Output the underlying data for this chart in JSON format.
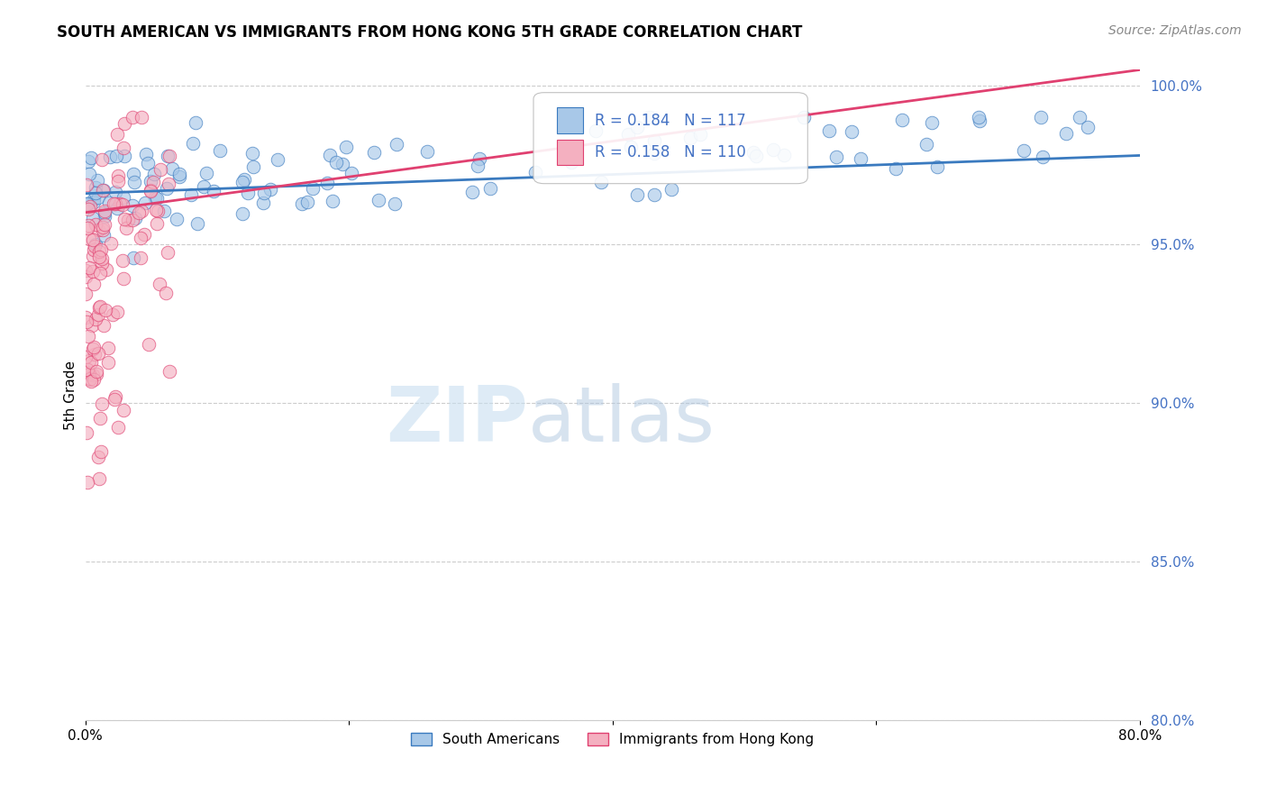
{
  "title": "SOUTH AMERICAN VS IMMIGRANTS FROM HONG KONG 5TH GRADE CORRELATION CHART",
  "source": "Source: ZipAtlas.com",
  "ylabel": "5th Grade",
  "xmin": 0.0,
  "xmax": 0.8,
  "ymin": 0.8,
  "ymax": 1.005,
  "blue_R": 0.184,
  "blue_N": 117,
  "pink_R": 0.158,
  "pink_N": 110,
  "blue_color": "#a8c8e8",
  "pink_color": "#f4b0c0",
  "blue_line_color": "#3a7abf",
  "pink_line_color": "#e04070",
  "legend_label_blue": "South Americans",
  "legend_label_pink": "Immigrants from Hong Kong",
  "watermark_zip": "ZIP",
  "watermark_atlas": "atlas",
  "blue_scatter_x": [
    0.002,
    0.003,
    0.004,
    0.005,
    0.006,
    0.007,
    0.008,
    0.009,
    0.01,
    0.011,
    0.012,
    0.013,
    0.014,
    0.015,
    0.016,
    0.017,
    0.018,
    0.019,
    0.02,
    0.021,
    0.022,
    0.023,
    0.024,
    0.025,
    0.026,
    0.027,
    0.028,
    0.029,
    0.03,
    0.032,
    0.034,
    0.036,
    0.038,
    0.04,
    0.042,
    0.044,
    0.046,
    0.048,
    0.05,
    0.055,
    0.06,
    0.065,
    0.07,
    0.075,
    0.08,
    0.09,
    0.1,
    0.11,
    0.12,
    0.13,
    0.14,
    0.15,
    0.16,
    0.17,
    0.18,
    0.19,
    0.2,
    0.21,
    0.22,
    0.23,
    0.24,
    0.25,
    0.26,
    0.27,
    0.28,
    0.29,
    0.3,
    0.31,
    0.32,
    0.33,
    0.34,
    0.35,
    0.36,
    0.37,
    0.38,
    0.39,
    0.4,
    0.41,
    0.42,
    0.43,
    0.44,
    0.45,
    0.46,
    0.47,
    0.48,
    0.49,
    0.5,
    0.51,
    0.52,
    0.53,
    0.54,
    0.55,
    0.56,
    0.57,
    0.58,
    0.59,
    0.6,
    0.61,
    0.62,
    0.63,
    0.64,
    0.65,
    0.66,
    0.67,
    0.68,
    0.69,
    0.7,
    0.71,
    0.72,
    0.73,
    0.74,
    0.75,
    0.76,
    0.77,
    0.78,
    0.79,
    0.8
  ],
  "blue_scatter_y": [
    0.974,
    0.972,
    0.97,
    0.968,
    0.966,
    0.978,
    0.975,
    0.972,
    0.97,
    0.968,
    0.966,
    0.964,
    0.962,
    0.96,
    0.975,
    0.972,
    0.97,
    0.968,
    0.966,
    0.964,
    0.975,
    0.972,
    0.97,
    0.968,
    0.966,
    0.964,
    0.962,
    0.96,
    0.97,
    0.975,
    0.972,
    0.97,
    0.968,
    0.966,
    0.975,
    0.972,
    0.97,
    0.968,
    0.966,
    0.972,
    0.97,
    0.968,
    0.966,
    0.968,
    0.97,
    0.96,
    0.965,
    0.968,
    0.97,
    0.965,
    0.968,
    0.96,
    0.965,
    0.958,
    0.97,
    0.968,
    0.975,
    0.968,
    0.965,
    0.972,
    0.965,
    0.97,
    0.968,
    0.972,
    0.96,
    0.968,
    0.975,
    0.965,
    0.97,
    0.972,
    0.965,
    0.975,
    0.968,
    0.96,
    0.972,
    0.975,
    0.968,
    0.965,
    0.97,
    0.972,
    0.975,
    0.968,
    0.965,
    0.97,
    0.972,
    0.975,
    0.968,
    0.96,
    0.965,
    0.972,
    0.975,
    0.968,
    0.96,
    0.972,
    0.965,
    0.975,
    0.968,
    0.985,
    0.975,
    0.968,
    0.965,
    0.978,
    0.965,
    0.978,
    0.97,
    0.965,
    0.985,
    0.975,
    0.98,
    0.975,
    0.978,
    0.965,
    0.972,
    0.975,
    0.968,
    0.972,
    0.978
  ],
  "pink_scatter_x": [
    0.001,
    0.002,
    0.002,
    0.003,
    0.003,
    0.004,
    0.004,
    0.005,
    0.005,
    0.006,
    0.006,
    0.007,
    0.007,
    0.008,
    0.008,
    0.009,
    0.009,
    0.01,
    0.01,
    0.011,
    0.011,
    0.012,
    0.012,
    0.013,
    0.013,
    0.014,
    0.014,
    0.015,
    0.015,
    0.016,
    0.016,
    0.017,
    0.017,
    0.018,
    0.018,
    0.019,
    0.019,
    0.02,
    0.02,
    0.021,
    0.021,
    0.022,
    0.022,
    0.023,
    0.023,
    0.024,
    0.024,
    0.025,
    0.025,
    0.026,
    0.026,
    0.027,
    0.027,
    0.028,
    0.028,
    0.029,
    0.029,
    0.03,
    0.03,
    0.031,
    0.031,
    0.032,
    0.032,
    0.033,
    0.033,
    0.034,
    0.034,
    0.035,
    0.035,
    0.036,
    0.036,
    0.037,
    0.037,
    0.038,
    0.038,
    0.039,
    0.039,
    0.04,
    0.04,
    0.042,
    0.044,
    0.046,
    0.048,
    0.05,
    0.052,
    0.054,
    0.056,
    0.058,
    0.06,
    0.062,
    0.015,
    0.02,
    0.025,
    0.015,
    0.02,
    0.01,
    0.025,
    0.03,
    0.005,
    0.01,
    0.02,
    0.03,
    0.015,
    0.025,
    0.01,
    0.018,
    0.022,
    0.028,
    0.032,
    0.035
  ],
  "pink_scatter_y": [
    0.981,
    0.983,
    0.979,
    0.981,
    0.978,
    0.98,
    0.976,
    0.978,
    0.975,
    0.977,
    0.974,
    0.976,
    0.972,
    0.974,
    0.971,
    0.981,
    0.969,
    0.972,
    0.968,
    0.971,
    0.967,
    0.97,
    0.966,
    0.968,
    0.965,
    0.967,
    0.963,
    0.966,
    0.962,
    0.965,
    0.961,
    0.963,
    0.96,
    0.962,
    0.958,
    0.961,
    0.957,
    0.96,
    0.956,
    0.959,
    0.955,
    0.958,
    0.954,
    0.957,
    0.953,
    0.956,
    0.952,
    0.955,
    0.951,
    0.981,
    0.95,
    0.953,
    0.949,
    0.952,
    0.948,
    0.951,
    0.947,
    0.95,
    0.946,
    0.949,
    0.945,
    0.948,
    0.944,
    0.947,
    0.943,
    0.946,
    0.942,
    0.945,
    0.941,
    0.944,
    0.94,
    0.943,
    0.939,
    0.942,
    0.938,
    0.941,
    0.937,
    0.94,
    0.936,
    0.938,
    0.935,
    0.933,
    0.931,
    0.929,
    0.927,
    0.925,
    0.923,
    0.921,
    0.919,
    0.917,
    0.908,
    0.905,
    0.903,
    0.9,
    0.898,
    0.896,
    0.894,
    0.892,
    0.89,
    0.888,
    0.886,
    0.884,
    0.882,
    0.88,
    0.878,
    0.876,
    0.874,
    0.872,
    0.87,
    0.868
  ]
}
